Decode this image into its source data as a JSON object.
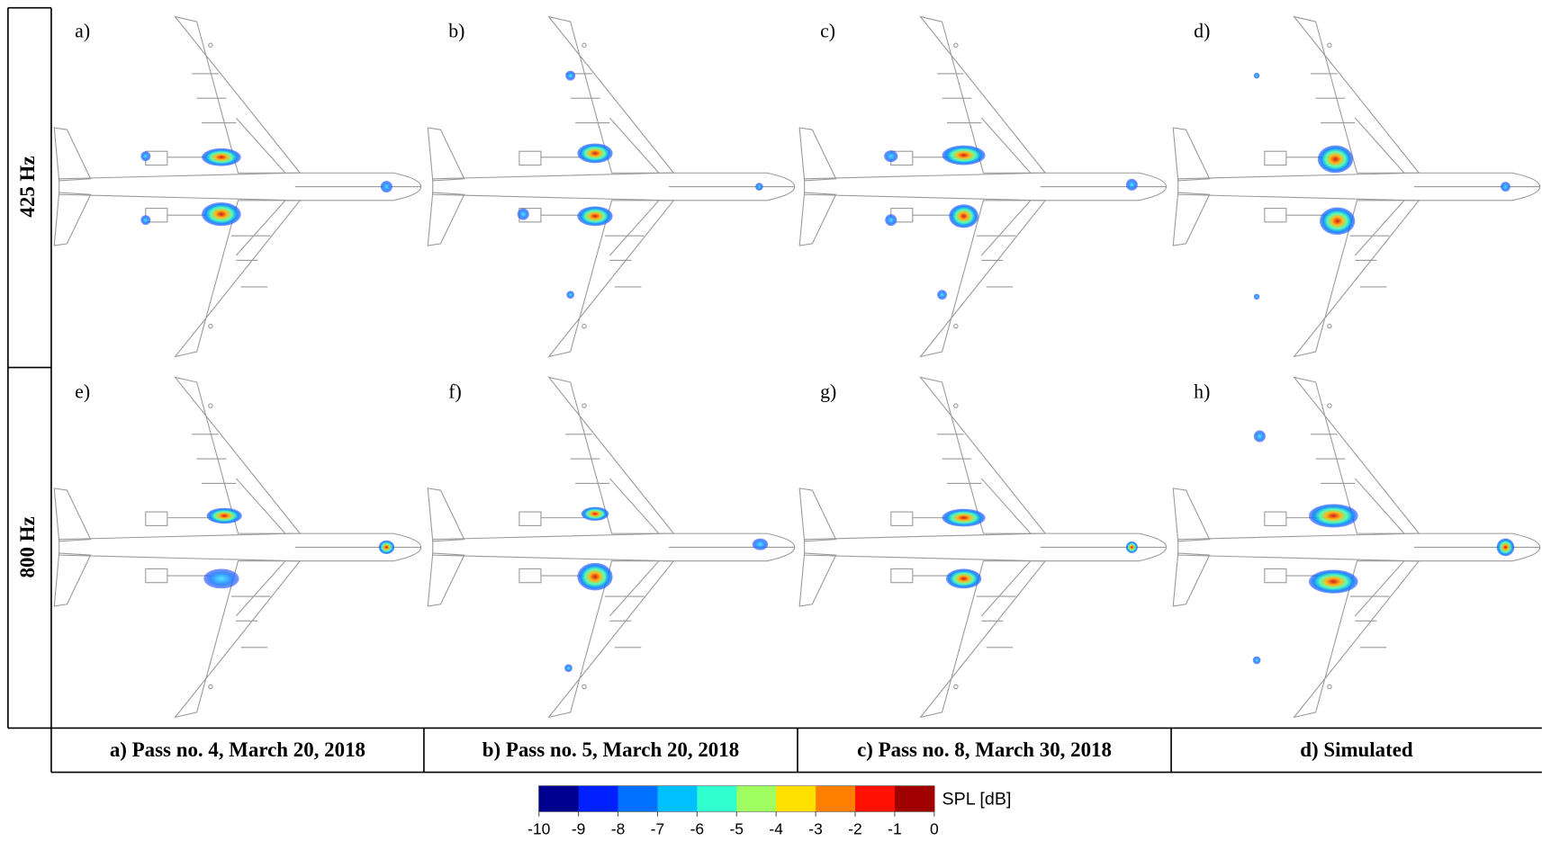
{
  "row_labels": [
    "425 Hz",
    "800 Hz"
  ],
  "panel_labels": [
    "a)",
    "b)",
    "c)",
    "d)",
    "e)",
    "f)",
    "g)",
    "h)"
  ],
  "column_labels": [
    "a) Pass no. 4, March 20, 2018",
    "b) Pass no. 5, March 20, 2018",
    "c) Pass no. 8, March 30, 2018",
    "d) Simulated"
  ],
  "colorbar": {
    "label": "SPL [dB]",
    "lim": [
      -10,
      0
    ],
    "ticks": [
      -10,
      -9,
      -8,
      -7,
      -6,
      -5,
      -4,
      -3,
      -2,
      -1,
      0
    ],
    "colors": [
      "#00008f",
      "#0020ff",
      "#0070ff",
      "#00c0ff",
      "#30ffcf",
      "#9fff60",
      "#ffe000",
      "#ff8000",
      "#ff1000",
      "#a00000"
    ]
  }
}
